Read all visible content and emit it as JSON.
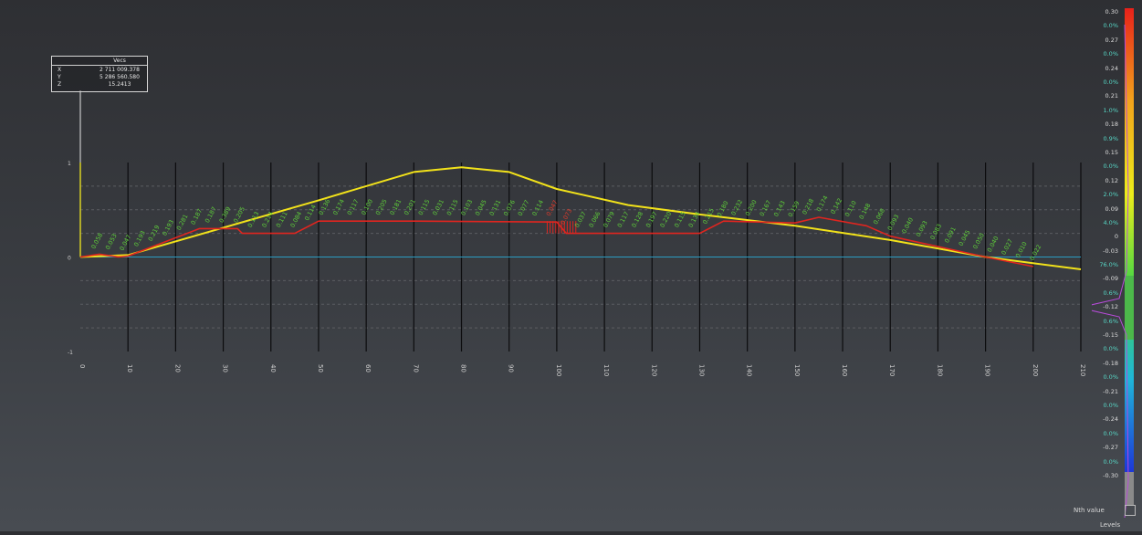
{
  "info_box": {
    "title": "Vecs",
    "rows": [
      {
        "key": "X",
        "value": "2 711 009.378"
      },
      {
        "key": "Y",
        "value": "5 286 560.580"
      },
      {
        "key": "Z",
        "value": "15.2413"
      }
    ]
  },
  "chart_data": {
    "type": "line",
    "x_ticks": [
      0,
      10,
      20,
      30,
      40,
      50,
      60,
      70,
      80,
      90,
      100,
      110,
      120,
      130,
      140,
      150,
      160,
      170,
      180,
      190,
      200,
      210
    ],
    "y_ticks": [
      1,
      0,
      -1
    ],
    "xlim": [
      0,
      210
    ],
    "ylim": [
      -1,
      1
    ],
    "series": [
      {
        "color": "#f2e21a",
        "points": [
          [
            0,
            0
          ],
          [
            10,
            0.02
          ],
          [
            50,
            0.6
          ],
          [
            70,
            0.9
          ],
          [
            80,
            0.95
          ],
          [
            90,
            0.9
          ],
          [
            100,
            0.72
          ],
          [
            115,
            0.55
          ],
          [
            130,
            0.45
          ],
          [
            150,
            0.33
          ],
          [
            170,
            0.18
          ],
          [
            190,
            0.0
          ],
          [
            210,
            -0.13
          ]
        ]
      },
      {
        "color": "#e0251f",
        "points": [
          [
            0,
            0
          ],
          [
            4,
            0.03
          ],
          [
            8,
            0.0
          ],
          [
            10,
            0.01
          ],
          [
            25,
            0.3
          ],
          [
            33,
            0.3
          ],
          [
            34,
            0.25
          ],
          [
            45,
            0.25
          ],
          [
            50,
            0.38
          ],
          [
            70,
            0.38
          ],
          [
            100,
            0.37
          ],
          [
            102,
            0.25
          ],
          [
            130,
            0.25
          ],
          [
            135,
            0.38
          ],
          [
            150,
            0.36
          ],
          [
            155,
            0.42
          ],
          [
            165,
            0.33
          ],
          [
            170,
            0.22
          ],
          [
            190,
            0.0
          ],
          [
            200,
            -0.1
          ]
        ]
      }
    ],
    "labels": [
      "0.058",
      "0.053",
      "0.047",
      "0.193",
      "0.219",
      "0.193",
      "0.281",
      "0.187",
      "0.187",
      "0.389",
      "0.205",
      "0.113",
      "0.214",
      "0.111",
      "0.084",
      "0.114",
      "0.136",
      "0.174",
      "0.117",
      "0.100",
      "0.205",
      "0.181",
      "0.201",
      "0.115",
      "0.031",
      "0.115",
      "0.103",
      "0.045",
      "0.131",
      "0.076",
      "0.077",
      "0.114",
      "0.047",
      "0.073",
      "0.037",
      "0.066",
      "0.079",
      "0.117",
      "0.128",
      "0.197",
      "0.220",
      "0.115",
      "0.134",
      "0.215",
      "0.180",
      "0.232",
      "0.200",
      "0.167",
      "0.143",
      "0.159",
      "0.218",
      "0.174",
      "0.142",
      "0.110",
      "0.148",
      "0.068",
      "0.093",
      "0.040",
      "0.093",
      "0.083",
      "0.091",
      "0.045",
      "0.050",
      "0.040",
      "0.027",
      "0.010",
      "0.022"
    ]
  },
  "scale_bar": {
    "labels": [
      {
        "text": "0.30",
        "pct": false
      },
      {
        "text": "0.0%",
        "pct": true
      },
      {
        "text": "0.27",
        "pct": false
      },
      {
        "text": "0.0%",
        "pct": true
      },
      {
        "text": "0.24",
        "pct": false
      },
      {
        "text": "0.0%",
        "pct": true
      },
      {
        "text": "0.21",
        "pct": false
      },
      {
        "text": "1.0%",
        "pct": true
      },
      {
        "text": "0.18",
        "pct": false
      },
      {
        "text": "0.9%",
        "pct": true
      },
      {
        "text": "0.15",
        "pct": false
      },
      {
        "text": "0.0%",
        "pct": true
      },
      {
        "text": "0.12",
        "pct": false
      },
      {
        "text": "2.0%",
        "pct": true
      },
      {
        "text": "0.09",
        "pct": false
      },
      {
        "text": "4.0%",
        "pct": true
      },
      {
        "text": "0",
        "pct": false
      },
      {
        "text": "-0.03",
        "pct": false
      },
      {
        "text": "76.0%",
        "pct": true
      },
      {
        "text": "-0.09",
        "pct": false
      },
      {
        "text": "0.6%",
        "pct": true
      },
      {
        "text": "-0.12",
        "pct": false
      },
      {
        "text": "0.6%",
        "pct": true
      },
      {
        "text": "-0.15",
        "pct": false
      },
      {
        "text": "0.0%",
        "pct": true
      },
      {
        "text": "-0.18",
        "pct": false
      },
      {
        "text": "0.0%",
        "pct": true
      },
      {
        "text": "-0.21",
        "pct": false
      },
      {
        "text": "0.0%",
        "pct": true
      },
      {
        "text": "-0.24",
        "pct": false
      },
      {
        "text": "0.0%",
        "pct": true
      },
      {
        "text": "-0.27",
        "pct": false
      },
      {
        "text": "0.0%",
        "pct": true
      },
      {
        "text": "-0.30",
        "pct": false
      }
    ],
    "colors": [
      "#e8211a",
      "#f2a31b",
      "#ecec1a",
      "#43d646",
      "#1fb6d8",
      "#1d37d8"
    ]
  },
  "controls": {
    "toggle_label": "Nth value",
    "bottom_label": "Levels"
  }
}
